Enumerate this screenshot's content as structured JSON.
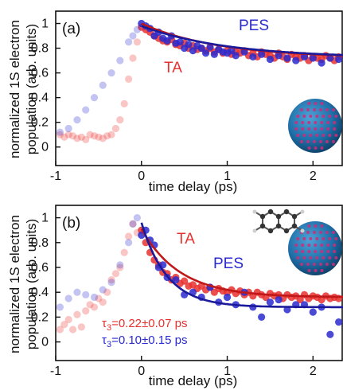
{
  "colors": {
    "ta": "#e8312f",
    "pes": "#2a2ad0",
    "fit_ta": "#c01818",
    "fit_pes": "#1a1a9a",
    "sphere_blue": "#1f6fa8",
    "sphere_dot": "#d02a7a"
  },
  "ylabel_lines": [
    "normalized 1S electron",
    "population (arb. units)"
  ],
  "chart_data": [
    {
      "type": "scatter",
      "panel_label": "(a)",
      "xlabel": "time delay (ps)",
      "xlim": [
        -1,
        2.35
      ],
      "ylim": [
        -0.15,
        1.1
      ],
      "xticks": [
        -1,
        0,
        1,
        2
      ],
      "xtick_labels": [
        "-1",
        "0",
        "1",
        "2"
      ],
      "yticks": [
        0,
        0.2,
        0.4,
        0.6,
        0.8,
        1
      ],
      "ytick_labels": [
        "0",
        "0.2",
        "0.4",
        "0.6",
        "0.8",
        "1"
      ],
      "series_labels": [
        {
          "text": "PES",
          "series": "PES"
        },
        {
          "text": "TA",
          "series": "TA"
        }
      ],
      "fit": {
        "start": 0.0,
        "amplitude": 0.28,
        "tau": 0.9,
        "offset": 0.72
      },
      "fit_pes": {
        "start": 0.0,
        "amplitude": 0.26,
        "tau": 1.0,
        "offset": 0.72
      },
      "series": [
        {
          "name": "TA",
          "x": [
            -0.95,
            -0.9,
            -0.85,
            -0.8,
            -0.75,
            -0.7,
            -0.65,
            -0.6,
            -0.55,
            -0.5,
            -0.45,
            -0.4,
            -0.35,
            -0.3,
            -0.25,
            -0.2,
            -0.15,
            -0.1,
            -0.05,
            0.0,
            0.05,
            0.1,
            0.15,
            0.2,
            0.25,
            0.3,
            0.35,
            0.4,
            0.45,
            0.5,
            0.55,
            0.6,
            0.65,
            0.7,
            0.75,
            0.8,
            0.85,
            0.9,
            0.95,
            1.0,
            1.05,
            1.1,
            1.15,
            1.2,
            1.25,
            1.3,
            1.35,
            1.4,
            1.45,
            1.5,
            1.55,
            1.6,
            1.65,
            1.7,
            1.75,
            1.8,
            1.85,
            1.9,
            1.95,
            2.0,
            2.05,
            2.1,
            2.15,
            2.2,
            2.25,
            2.3
          ],
          "y": [
            0.1,
            0.08,
            0.1,
            0.09,
            0.07,
            0.08,
            0.06,
            0.1,
            0.09,
            0.08,
            0.07,
            0.09,
            0.1,
            0.15,
            0.22,
            0.35,
            0.55,
            0.72,
            0.85,
            0.97,
            0.95,
            0.93,
            0.9,
            0.88,
            0.86,
            0.85,
            0.87,
            0.83,
            0.82,
            0.84,
            0.8,
            0.82,
            0.79,
            0.8,
            0.78,
            0.8,
            0.77,
            0.79,
            0.76,
            0.78,
            0.75,
            0.77,
            0.76,
            0.78,
            0.74,
            0.76,
            0.73,
            0.77,
            0.75,
            0.74,
            0.72,
            0.76,
            0.73,
            0.71,
            0.75,
            0.73,
            0.72,
            0.74,
            0.7,
            0.73,
            0.72,
            0.71,
            0.74,
            0.72,
            0.7,
            0.73
          ]
        },
        {
          "name": "PES",
          "x": [
            -0.95,
            -0.85,
            -0.75,
            -0.65,
            -0.55,
            -0.45,
            -0.35,
            -0.25,
            -0.15,
            -0.1,
            -0.05,
            0.0,
            0.05,
            0.1,
            0.15,
            0.2,
            0.25,
            0.3,
            0.35,
            0.4,
            0.45,
            0.5,
            0.55,
            0.6,
            0.65,
            0.7,
            0.75,
            0.8,
            0.85,
            0.9,
            0.95,
            1.0,
            1.05,
            1.1,
            1.2,
            1.3,
            1.4,
            1.5,
            1.6,
            1.7,
            1.8,
            1.9,
            2.0,
            2.1,
            2.2,
            2.3
          ],
          "y": [
            0.12,
            0.15,
            0.22,
            0.3,
            0.4,
            0.5,
            0.6,
            0.7,
            0.85,
            0.9,
            0.95,
            1.0,
            0.98,
            0.96,
            0.9,
            0.93,
            0.88,
            0.86,
            0.9,
            0.84,
            0.85,
            0.8,
            0.83,
            0.78,
            0.82,
            0.8,
            0.76,
            0.81,
            0.75,
            0.79,
            0.77,
            0.76,
            0.78,
            0.74,
            0.77,
            0.73,
            0.75,
            0.71,
            0.74,
            0.72,
            0.7,
            0.73,
            0.72,
            0.68,
            0.72,
            0.71
          ]
        }
      ]
    },
    {
      "type": "scatter",
      "panel_label": "(b)",
      "xlabel": "time delay (ps)",
      "xlim": [
        -1,
        2.35
      ],
      "ylim": [
        -0.15,
        1.1
      ],
      "xticks": [
        -1,
        0,
        1,
        2
      ],
      "xtick_labels": [
        "-1",
        "0",
        "1",
        "2"
      ],
      "yticks": [
        0,
        0.2,
        0.4,
        0.6,
        0.8,
        1
      ],
      "ytick_labels": [
        "0",
        "0.2",
        "0.4",
        "0.6",
        "0.8",
        "1"
      ],
      "series_labels": [
        {
          "text": "TA",
          "series": "TA"
        },
        {
          "text": "PES",
          "series": "PES"
        }
      ],
      "annotations": [
        {
          "text": "τ3=0.22±0.07 ps",
          "series": "TA"
        },
        {
          "text": "τ3=0.10±0.15 ps",
          "series": "PES"
        }
      ],
      "fit": {
        "start": 0.0,
        "amplitude": 0.55,
        "tau": 0.45,
        "offset": 0.36
      },
      "fit_pes": {
        "start": 0.0,
        "amplitude": 0.68,
        "tau": 0.3,
        "offset": 0.28
      },
      "series": [
        {
          "name": "TA",
          "x": [
            -0.95,
            -0.9,
            -0.85,
            -0.8,
            -0.75,
            -0.7,
            -0.65,
            -0.6,
            -0.55,
            -0.5,
            -0.45,
            -0.4,
            -0.35,
            -0.3,
            -0.25,
            -0.2,
            -0.15,
            -0.1,
            -0.05,
            0.0,
            0.05,
            0.1,
            0.15,
            0.2,
            0.25,
            0.3,
            0.35,
            0.4,
            0.45,
            0.5,
            0.55,
            0.6,
            0.65,
            0.7,
            0.75,
            0.8,
            0.85,
            0.9,
            0.95,
            1.0,
            1.05,
            1.1,
            1.15,
            1.2,
            1.25,
            1.3,
            1.35,
            1.4,
            1.45,
            1.5,
            1.55,
            1.6,
            1.65,
            1.7,
            1.75,
            1.8,
            1.85,
            1.9,
            1.95,
            2.0,
            2.05,
            2.1,
            2.15,
            2.2,
            2.25,
            2.3
          ],
          "y": [
            0.1,
            0.14,
            0.18,
            0.1,
            0.22,
            0.12,
            0.25,
            0.3,
            0.28,
            0.35,
            0.32,
            0.4,
            0.5,
            0.55,
            0.6,
            0.72,
            0.85,
            0.95,
            0.88,
            0.9,
            0.8,
            0.72,
            0.66,
            0.62,
            0.56,
            0.55,
            0.5,
            0.52,
            0.47,
            0.49,
            0.45,
            0.46,
            0.43,
            0.45,
            0.42,
            0.44,
            0.4,
            0.43,
            0.41,
            0.4,
            0.42,
            0.39,
            0.41,
            0.38,
            0.4,
            0.37,
            0.4,
            0.38,
            0.36,
            0.39,
            0.37,
            0.38,
            0.35,
            0.38,
            0.36,
            0.37,
            0.34,
            0.38,
            0.35,
            0.37,
            0.36,
            0.34,
            0.37,
            0.35,
            0.36,
            0.35
          ]
        },
        {
          "name": "PES",
          "x": [
            -0.95,
            -0.85,
            -0.75,
            -0.65,
            -0.55,
            -0.45,
            -0.35,
            -0.25,
            -0.15,
            -0.1,
            -0.05,
            0.0,
            0.05,
            0.1,
            0.15,
            0.2,
            0.25,
            0.3,
            0.4,
            0.5,
            0.6,
            0.7,
            0.8,
            0.9,
            1.0,
            1.1,
            1.2,
            1.3,
            1.4,
            1.5,
            1.6,
            1.7,
            1.8,
            1.9,
            2.0,
            2.1,
            2.2,
            2.3
          ],
          "y": [
            0.28,
            0.35,
            0.4,
            0.38,
            0.36,
            0.42,
            0.48,
            0.62,
            0.8,
            0.95,
            1.0,
            0.86,
            0.9,
            0.82,
            0.78,
            0.6,
            0.62,
            0.52,
            0.5,
            0.38,
            0.4,
            0.36,
            0.44,
            0.32,
            0.36,
            0.3,
            0.4,
            0.28,
            0.2,
            0.32,
            0.34,
            0.26,
            0.3,
            0.3,
            0.24,
            0.28,
            0.06,
            0.16
          ]
        }
      ]
    }
  ]
}
